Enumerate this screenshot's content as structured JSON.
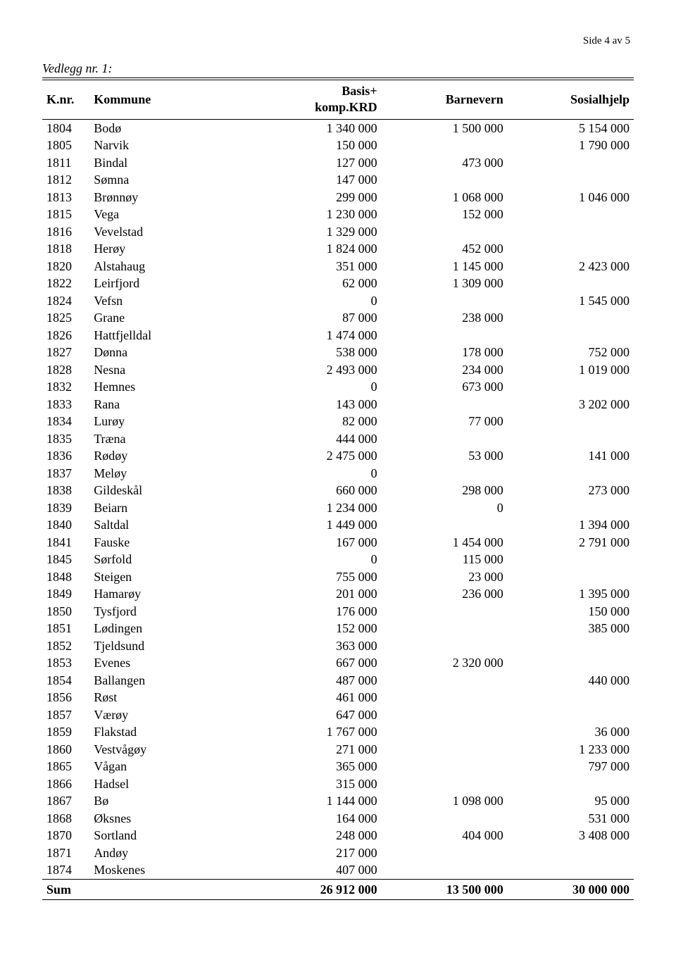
{
  "page_label": "Side 4 av 5",
  "vedlegg_title": "Vedlegg nr. 1:",
  "columns": {
    "knr": "K.nr.",
    "kommune": "Kommune",
    "basis": "Basis+\nkomp.KRD",
    "barnevern": "Barnevern",
    "sosialhjelp": "Sosialhjelp"
  },
  "rows": [
    {
      "knr": "1804",
      "kommune": "Bodø",
      "basis": "1 340 000",
      "barnevern": "1 500 000",
      "sosialhjelp": "5 154 000"
    },
    {
      "knr": "1805",
      "kommune": "Narvik",
      "basis": "150 000",
      "barnevern": "",
      "sosialhjelp": "1 790 000"
    },
    {
      "knr": "1811",
      "kommune": "Bindal",
      "basis": "127 000",
      "barnevern": "473 000",
      "sosialhjelp": ""
    },
    {
      "knr": "1812",
      "kommune": "Sømna",
      "basis": "147 000",
      "barnevern": "",
      "sosialhjelp": ""
    },
    {
      "knr": "1813",
      "kommune": "Brønnøy",
      "basis": "299 000",
      "barnevern": "1 068 000",
      "sosialhjelp": "1 046 000"
    },
    {
      "knr": "1815",
      "kommune": "Vega",
      "basis": "1 230 000",
      "barnevern": "152 000",
      "sosialhjelp": ""
    },
    {
      "knr": "1816",
      "kommune": "Vevelstad",
      "basis": "1 329 000",
      "barnevern": "",
      "sosialhjelp": ""
    },
    {
      "knr": "1818",
      "kommune": "Herøy",
      "basis": "1 824 000",
      "barnevern": "452 000",
      "sosialhjelp": ""
    },
    {
      "knr": "1820",
      "kommune": "Alstahaug",
      "basis": "351 000",
      "barnevern": "1 145 000",
      "sosialhjelp": "2 423 000"
    },
    {
      "knr": "1822",
      "kommune": "Leirfjord",
      "basis": "62 000",
      "barnevern": "1 309 000",
      "sosialhjelp": ""
    },
    {
      "knr": "1824",
      "kommune": "Vefsn",
      "basis": "0",
      "barnevern": "",
      "sosialhjelp": "1 545 000"
    },
    {
      "knr": "1825",
      "kommune": "Grane",
      "basis": "87 000",
      "barnevern": "238 000",
      "sosialhjelp": ""
    },
    {
      "knr": "1826",
      "kommune": "Hattfjelldal",
      "basis": "1 474 000",
      "barnevern": "",
      "sosialhjelp": ""
    },
    {
      "knr": "1827",
      "kommune": "Dønna",
      "basis": "538 000",
      "barnevern": "178 000",
      "sosialhjelp": "752 000"
    },
    {
      "knr": "1828",
      "kommune": "Nesna",
      "basis": "2 493 000",
      "barnevern": "234 000",
      "sosialhjelp": "1 019 000"
    },
    {
      "knr": "1832",
      "kommune": "Hemnes",
      "basis": "0",
      "barnevern": "673 000",
      "sosialhjelp": ""
    },
    {
      "knr": "1833",
      "kommune": "Rana",
      "basis": "143 000",
      "barnevern": "",
      "sosialhjelp": "3 202 000"
    },
    {
      "knr": "1834",
      "kommune": "Lurøy",
      "basis": "82 000",
      "barnevern": "77 000",
      "sosialhjelp": ""
    },
    {
      "knr": "1835",
      "kommune": "Træna",
      "basis": "444 000",
      "barnevern": "",
      "sosialhjelp": ""
    },
    {
      "knr": "1836",
      "kommune": "Rødøy",
      "basis": "2 475 000",
      "barnevern": "53 000",
      "sosialhjelp": "141 000"
    },
    {
      "knr": "1837",
      "kommune": "Meløy",
      "basis": "0",
      "barnevern": "",
      "sosialhjelp": ""
    },
    {
      "knr": "1838",
      "kommune": "Gildeskål",
      "basis": "660 000",
      "barnevern": "298 000",
      "sosialhjelp": "273 000"
    },
    {
      "knr": "1839",
      "kommune": "Beiarn",
      "basis": "1 234 000",
      "barnevern": "0",
      "sosialhjelp": ""
    },
    {
      "knr": "1840",
      "kommune": "Saltdal",
      "basis": "1 449 000",
      "barnevern": "",
      "sosialhjelp": "1 394 000"
    },
    {
      "knr": "1841",
      "kommune": "Fauske",
      "basis": "167 000",
      "barnevern": "1 454 000",
      "sosialhjelp": "2 791 000"
    },
    {
      "knr": "1845",
      "kommune": "Sørfold",
      "basis": "0",
      "barnevern": "115 000",
      "sosialhjelp": ""
    },
    {
      "knr": "1848",
      "kommune": "Steigen",
      "basis": "755 000",
      "barnevern": "23 000",
      "sosialhjelp": ""
    },
    {
      "knr": "1849",
      "kommune": "Hamarøy",
      "basis": "201 000",
      "barnevern": "236 000",
      "sosialhjelp": "1 395 000"
    },
    {
      "knr": "1850",
      "kommune": "Tysfjord",
      "basis": "176 000",
      "barnevern": "",
      "sosialhjelp": "150 000"
    },
    {
      "knr": "1851",
      "kommune": "Lødingen",
      "basis": "152 000",
      "barnevern": "",
      "sosialhjelp": "385 000"
    },
    {
      "knr": "1852",
      "kommune": "Tjeldsund",
      "basis": "363 000",
      "barnevern": "",
      "sosialhjelp": ""
    },
    {
      "knr": "1853",
      "kommune": "Evenes",
      "basis": "667 000",
      "barnevern": "2 320 000",
      "sosialhjelp": ""
    },
    {
      "knr": "1854",
      "kommune": "Ballangen",
      "basis": "487 000",
      "barnevern": "",
      "sosialhjelp": "440 000"
    },
    {
      "knr": "1856",
      "kommune": "Røst",
      "basis": "461 000",
      "barnevern": "",
      "sosialhjelp": ""
    },
    {
      "knr": "1857",
      "kommune": "Værøy",
      "basis": "647 000",
      "barnevern": "",
      "sosialhjelp": ""
    },
    {
      "knr": "1859",
      "kommune": "Flakstad",
      "basis": "1 767 000",
      "barnevern": "",
      "sosialhjelp": "36 000"
    },
    {
      "knr": "1860",
      "kommune": "Vestvågøy",
      "basis": "271 000",
      "barnevern": "",
      "sosialhjelp": "1 233 000"
    },
    {
      "knr": "1865",
      "kommune": "Vågan",
      "basis": "365 000",
      "barnevern": "",
      "sosialhjelp": "797 000"
    },
    {
      "knr": "1866",
      "kommune": "Hadsel",
      "basis": "315 000",
      "barnevern": "",
      "sosialhjelp": ""
    },
    {
      "knr": "1867",
      "kommune": "Bø",
      "basis": "1 144 000",
      "barnevern": "1 098 000",
      "sosialhjelp": "95 000"
    },
    {
      "knr": "1868",
      "kommune": "Øksnes",
      "basis": "164 000",
      "barnevern": "",
      "sosialhjelp": "531 000"
    },
    {
      "knr": "1870",
      "kommune": "Sortland",
      "basis": "248 000",
      "barnevern": "404 000",
      "sosialhjelp": "3 408 000"
    },
    {
      "knr": "1871",
      "kommune": "Andøy",
      "basis": "217 000",
      "barnevern": "",
      "sosialhjelp": ""
    },
    {
      "knr": "1874",
      "kommune": "Moskenes",
      "basis": "407 000",
      "barnevern": "",
      "sosialhjelp": ""
    }
  ],
  "sum": {
    "label": "Sum",
    "basis": "26 912 000",
    "barnevern": "13 500 000",
    "sosialhjelp": "30 000 000"
  }
}
